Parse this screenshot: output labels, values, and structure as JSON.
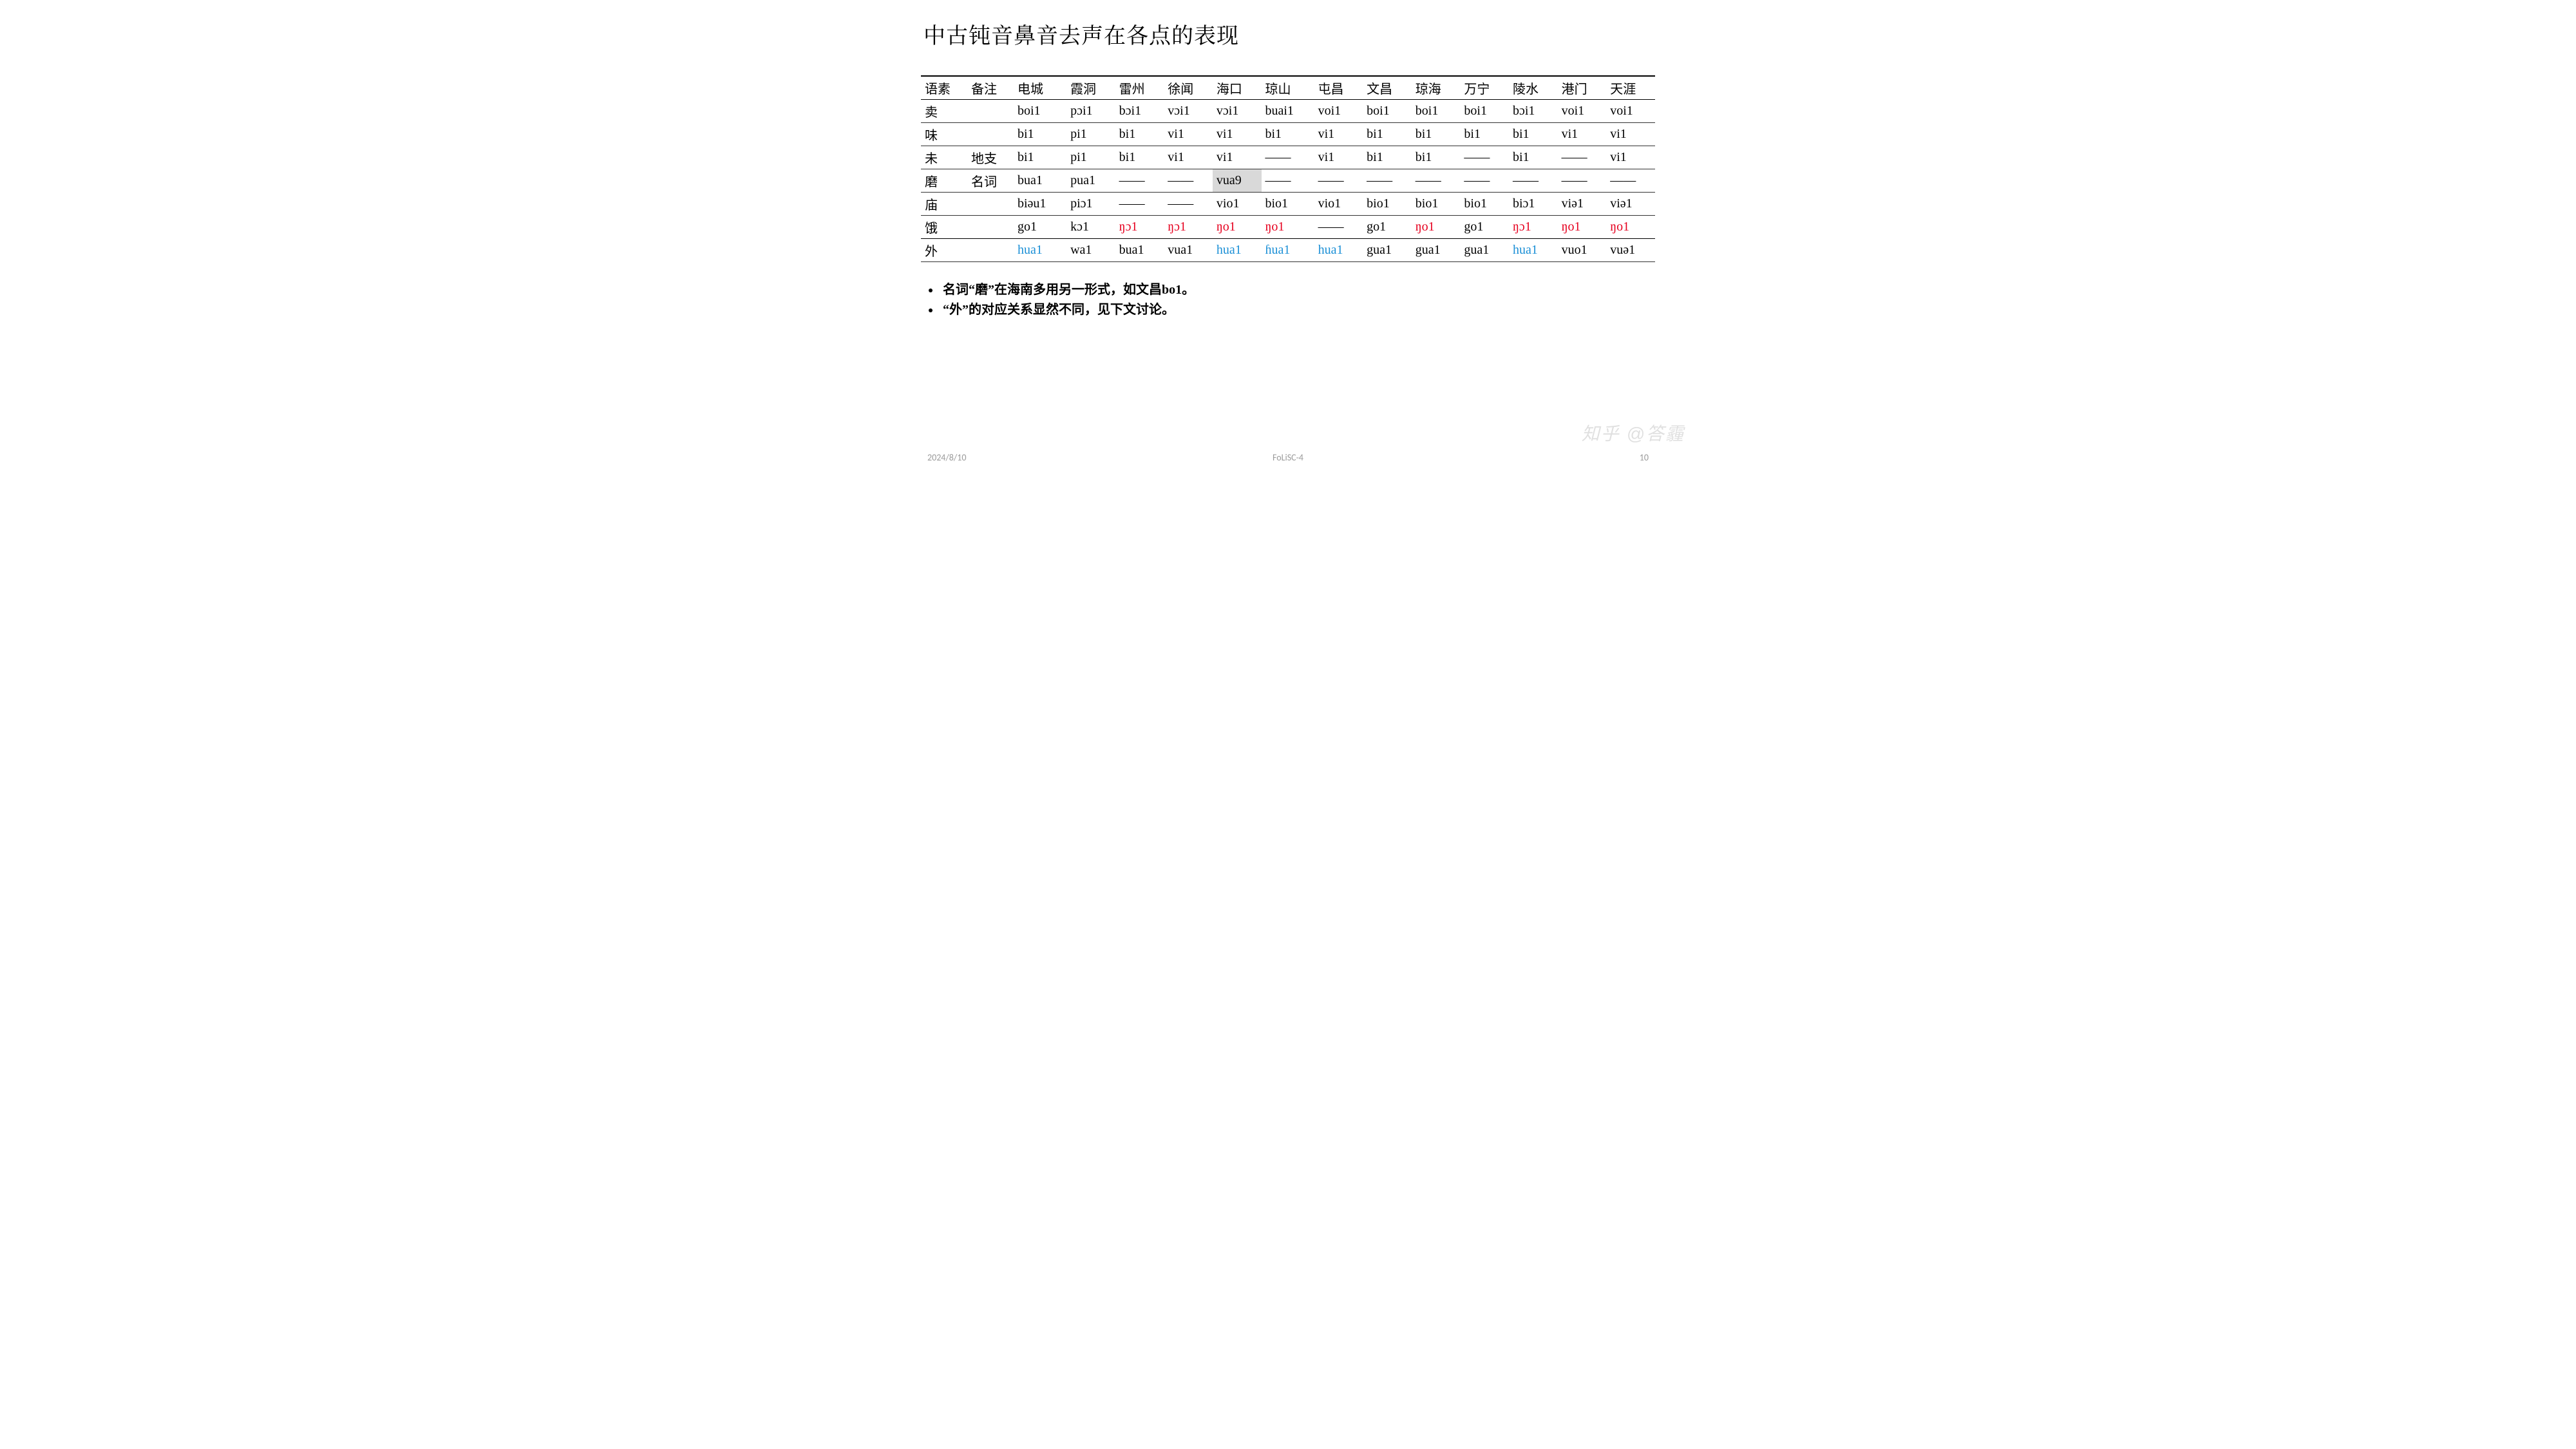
{
  "title": "中古钝音鼻音去声在各点的表现",
  "table": {
    "columns": [
      "语素",
      "备注",
      "电城",
      "霞洞",
      "雷州",
      "徐闻",
      "海口",
      "琼山",
      "屯昌",
      "文昌",
      "琼海",
      "万宁",
      "陵水",
      "港门",
      "天涯"
    ],
    "rows": [
      {
        "cells": [
          {
            "t": "卖"
          },
          {
            "t": ""
          },
          {
            "t": "boi1"
          },
          {
            "t": "pɔi1"
          },
          {
            "t": "bɔi1"
          },
          {
            "t": "vɔi1"
          },
          {
            "t": "vɔi1"
          },
          {
            "t": "buai1"
          },
          {
            "t": "voi1"
          },
          {
            "t": "boi1"
          },
          {
            "t": "boi1"
          },
          {
            "t": "boi1"
          },
          {
            "t": "bɔi1"
          },
          {
            "t": "voi1"
          },
          {
            "t": "voi1"
          }
        ]
      },
      {
        "cells": [
          {
            "t": "味"
          },
          {
            "t": ""
          },
          {
            "t": "bi1"
          },
          {
            "t": "pi1"
          },
          {
            "t": "bi1"
          },
          {
            "t": "vi1"
          },
          {
            "t": "vi1"
          },
          {
            "t": "bi1"
          },
          {
            "t": "vi1"
          },
          {
            "t": "bi1"
          },
          {
            "t": "bi1"
          },
          {
            "t": "bi1"
          },
          {
            "t": "bi1"
          },
          {
            "t": "vi1"
          },
          {
            "t": "vi1"
          }
        ]
      },
      {
        "cells": [
          {
            "t": "未"
          },
          {
            "t": "地支"
          },
          {
            "t": "bi1"
          },
          {
            "t": "pi1"
          },
          {
            "t": "bi1"
          },
          {
            "t": "vi1"
          },
          {
            "t": "vi1"
          },
          {
            "t": "——"
          },
          {
            "t": "vi1"
          },
          {
            "t": "bi1"
          },
          {
            "t": "bi1"
          },
          {
            "t": "——"
          },
          {
            "t": "bi1"
          },
          {
            "t": "——"
          },
          {
            "t": "vi1"
          }
        ]
      },
      {
        "cells": [
          {
            "t": "磨"
          },
          {
            "t": "名词"
          },
          {
            "t": "bua1"
          },
          {
            "t": "pua1"
          },
          {
            "t": "——"
          },
          {
            "t": "——"
          },
          {
            "t": "vua9",
            "hl": true
          },
          {
            "t": "——"
          },
          {
            "t": "——"
          },
          {
            "t": "——"
          },
          {
            "t": "——"
          },
          {
            "t": "——"
          },
          {
            "t": "——"
          },
          {
            "t": "——"
          },
          {
            "t": "——"
          }
        ]
      },
      {
        "cells": [
          {
            "t": "庙"
          },
          {
            "t": ""
          },
          {
            "t": "biəu1"
          },
          {
            "t": "piɔ1"
          },
          {
            "t": "——"
          },
          {
            "t": "——"
          },
          {
            "t": "vio1"
          },
          {
            "t": "bio1"
          },
          {
            "t": "vio1"
          },
          {
            "t": "bio1"
          },
          {
            "t": "bio1"
          },
          {
            "t": "bio1"
          },
          {
            "t": "biɔ1"
          },
          {
            "t": "viə1"
          },
          {
            "t": "viə1"
          }
        ]
      },
      {
        "cells": [
          {
            "t": "饿"
          },
          {
            "t": ""
          },
          {
            "t": "go1"
          },
          {
            "t": "kɔ1"
          },
          {
            "t": "ŋɔ1",
            "c": "red"
          },
          {
            "t": "ŋɔ1",
            "c": "red"
          },
          {
            "t": "ŋo1",
            "c": "red"
          },
          {
            "t": "ŋo1",
            "c": "red"
          },
          {
            "t": "——"
          },
          {
            "t": "go1"
          },
          {
            "t": "ŋo1",
            "c": "red"
          },
          {
            "t": "go1"
          },
          {
            "t": "ŋɔ1",
            "c": "red"
          },
          {
            "t": "ŋo1",
            "c": "red"
          },
          {
            "t": "ŋo1",
            "c": "red"
          }
        ],
        "last": true
      },
      {
        "cells": [
          {
            "t": "外"
          },
          {
            "t": ""
          },
          {
            "t": "hua1",
            "c": "blue"
          },
          {
            "t": "wa1"
          },
          {
            "t": "bua1"
          },
          {
            "t": "vua1"
          },
          {
            "t": "hua1",
            "c": "blue"
          },
          {
            "t": "ɦua1",
            "c": "blue"
          },
          {
            "t": "hua1",
            "c": "blue"
          },
          {
            "t": "gua1"
          },
          {
            "t": "gua1"
          },
          {
            "t": "gua1"
          },
          {
            "t": "hua1",
            "c": "blue"
          },
          {
            "t": "vuo1"
          },
          {
            "t": "vuə1"
          }
        ]
      }
    ],
    "colors": {
      "red": "#e6001f",
      "blue": "#1a8fd6",
      "highlight_bg": "#d9d9d9",
      "border": "#333333",
      "text": "#000000"
    },
    "font_size": 20
  },
  "notes": [
    "名词“磨”在海南多用另一形式，如文昌bo1。",
    "“外”的对应关系显然不同，见下文讨论。"
  ],
  "footer": {
    "date": "2024/8/10",
    "center": "FoLiSC-4",
    "page": "10"
  },
  "watermark": "知乎 @答霾"
}
